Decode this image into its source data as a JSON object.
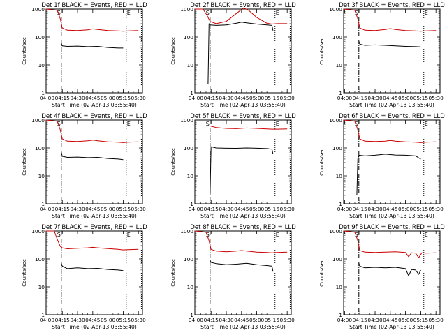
{
  "page": {
    "background": "#ffffff",
    "axis_color": "#000000",
    "events_color": "#000000",
    "lld_color": "#cc0000"
  },
  "chart_data": [
    {
      "type": "line",
      "title": "Det 1f BLACK = Events, RED = LLD",
      "xlabel": "Start Time (02-Apr-13 03:55:40)",
      "ylabel": "Counts/sec",
      "yscale": "log",
      "ylim": [
        1,
        1000
      ],
      "xlim": [
        "03:59",
        "05:34"
      ],
      "xticks": [
        "04:00",
        "04:15",
        "04:30",
        "04:45",
        "05:00",
        "05:15",
        "05:30"
      ],
      "yticks": [
        "1",
        "10",
        "100",
        "1000"
      ],
      "grid": false,
      "markers": [
        {
          "label": "S",
          "time": "04:14"
        },
        {
          "label": "E",
          "time": "05:18"
        }
      ],
      "dotted_lines": [
        "05:18",
        "05:33"
      ],
      "start_time": "04:14",
      "end_time": "05:15",
      "series": [
        {
          "color": "#000000",
          "x": [
            "04:14",
            "04:15",
            "04:20",
            "04:30",
            "04:40",
            "04:50",
            "05:00",
            "05:10",
            "05:15"
          ],
          "values": [
            60,
            48,
            46,
            47,
            45,
            46,
            42,
            40,
            40
          ]
        },
        {
          "color": "#cc0000",
          "x": [
            "03:59",
            "04:10",
            "04:13",
            "04:15",
            "04:20",
            "04:30",
            "04:40",
            "04:45",
            "04:50",
            "05:00",
            "05:10",
            "05:15",
            "05:20",
            "05:30"
          ],
          "values": [
            1000,
            900,
            450,
            210,
            175,
            170,
            180,
            195,
            185,
            170,
            165,
            160,
            165,
            170
          ]
        }
      ]
    },
    {
      "type": "line",
      "title": "Det 2f BLACK = Events, RED = LLD",
      "xlabel": "Start Time (02-Apr-13 03:55:40)",
      "ylabel": "Counts/sec",
      "yscale": "log",
      "ylim": [
        1,
        1000
      ],
      "xlim": [
        "03:59",
        "05:34"
      ],
      "xticks": [
        "04:00",
        "04:15",
        "04:30",
        "04:45",
        "05:00",
        "05:15",
        "05:30"
      ],
      "yticks": [
        "1",
        "10",
        "100",
        "1000"
      ],
      "grid": false,
      "markers": [
        {
          "label": "S",
          "time": "04:14"
        },
        {
          "label": "E",
          "time": "05:18"
        }
      ],
      "dotted_lines": [
        "05:18",
        "05:33"
      ],
      "start_time": "04:14",
      "end_time": "05:15",
      "series": [
        {
          "color": "#000000",
          "x": [
            "04:12",
            "04:13",
            "04:14",
            "04:20",
            "04:30",
            "04:40",
            "04:45",
            "04:50",
            "05:00",
            "05:10",
            "05:15",
            "05:16"
          ],
          "values": [
            2,
            300,
            270,
            260,
            270,
            310,
            340,
            320,
            290,
            270,
            260,
            170
          ]
        },
        {
          "color": "#cc0000",
          "x": [
            "03:59",
            "04:07",
            "04:11",
            "04:14",
            "04:20",
            "04:30",
            "04:40",
            "04:47",
            "04:52",
            "05:00",
            "05:10",
            "05:15",
            "05:20",
            "05:30"
          ],
          "values": [
            1000,
            1000,
            600,
            360,
            300,
            360,
            700,
            1100,
            900,
            500,
            310,
            290,
            300,
            300
          ]
        }
      ]
    },
    {
      "type": "line",
      "title": "Det 3f BLACK = Events, RED = LLD",
      "xlabel": "Start Time (02-Apr-13 03:55:40)",
      "ylabel": "Counts/sec",
      "yscale": "log",
      "ylim": [
        1,
        1000
      ],
      "xlim": [
        "03:59",
        "05:34"
      ],
      "xticks": [
        "04:00",
        "04:15",
        "04:30",
        "04:45",
        "05:00",
        "05:15",
        "05:30"
      ],
      "yticks": [
        "1",
        "10",
        "100",
        "1000"
      ],
      "grid": false,
      "markers": [
        {
          "label": "S",
          "time": "04:14"
        },
        {
          "label": "E",
          "time": "05:18"
        }
      ],
      "dotted_lines": [
        "05:18",
        "05:33"
      ],
      "start_time": "04:14",
      "end_time": "05:15",
      "series": [
        {
          "color": "#000000",
          "x": [
            "04:14",
            "04:15",
            "04:20",
            "04:30",
            "04:40",
            "04:50",
            "05:00",
            "05:10",
            "05:15"
          ],
          "values": [
            70,
            55,
            50,
            52,
            50,
            48,
            46,
            45,
            44
          ]
        },
        {
          "color": "#cc0000",
          "x": [
            "03:59",
            "04:10",
            "04:13",
            "04:15",
            "04:20",
            "04:30",
            "04:40",
            "04:45",
            "04:50",
            "05:00",
            "05:10",
            "05:15",
            "05:20",
            "05:30"
          ],
          "values": [
            1000,
            900,
            450,
            210,
            175,
            170,
            185,
            200,
            185,
            170,
            165,
            160,
            165,
            170
          ]
        }
      ]
    },
    {
      "type": "line",
      "title": "Det 4f BLACK = Events, RED = LLD",
      "xlabel": "Start Time (02-Apr-13 03:55:40)",
      "ylabel": "Counts/sec",
      "yscale": "log",
      "ylim": [
        1,
        1000
      ],
      "xlim": [
        "03:59",
        "05:34"
      ],
      "xticks": [
        "04:00",
        "04:15",
        "04:30",
        "04:45",
        "05:00",
        "05:15",
        "05:30"
      ],
      "yticks": [
        "1",
        "10",
        "100",
        "1000"
      ],
      "grid": false,
      "markers": [
        {
          "label": "S",
          "time": "04:14"
        },
        {
          "label": "E",
          "time": "05:18"
        }
      ],
      "dotted_lines": [
        "05:18",
        "05:33"
      ],
      "start_time": "04:14",
      "end_time": "05:15",
      "series": [
        {
          "color": "#000000",
          "x": [
            "04:14",
            "04:15",
            "04:20",
            "04:30",
            "04:40",
            "04:50",
            "05:00",
            "05:10",
            "05:15"
          ],
          "values": [
            70,
            50,
            46,
            47,
            45,
            46,
            42,
            40,
            38
          ]
        },
        {
          "color": "#cc0000",
          "x": [
            "03:59",
            "04:10",
            "04:13",
            "04:15",
            "04:20",
            "04:30",
            "04:40",
            "04:45",
            "04:50",
            "05:00",
            "05:10",
            "05:15",
            "05:20",
            "05:30"
          ],
          "values": [
            1000,
            900,
            450,
            210,
            175,
            170,
            180,
            190,
            180,
            165,
            160,
            155,
            160,
            165
          ]
        }
      ]
    },
    {
      "type": "line",
      "title": "Det 5f BLACK = Events, RED = LLD",
      "xlabel": "Start Time (02-Apr-13 03:55:40)",
      "ylabel": "Counts/sec",
      "yscale": "log",
      "ylim": [
        1,
        1000
      ],
      "xlim": [
        "03:59",
        "05:34"
      ],
      "xticks": [
        "04:00",
        "04:15",
        "04:30",
        "04:45",
        "05:00",
        "05:15",
        "05:30"
      ],
      "yticks": [
        "1",
        "10",
        "100",
        "1000"
      ],
      "grid": false,
      "markers": [
        {
          "label": "S",
          "time": "04:14"
        },
        {
          "label": "E",
          "time": "05:18"
        }
      ],
      "dotted_lines": [
        "05:18",
        "05:33"
      ],
      "start_time": "04:14",
      "end_time": "05:15",
      "series": [
        {
          "color": "#000000",
          "x": [
            "04:14",
            "04:15",
            "04:20",
            "04:30",
            "04:40",
            "04:50",
            "05:00",
            "05:10",
            "05:15",
            "05:16"
          ],
          "values": [
            2,
            110,
            100,
            98,
            97,
            100,
            98,
            95,
            90,
            60
          ]
        },
        {
          "color": "#cc0000",
          "x": [
            "04:14",
            "04:15",
            "04:20",
            "04:30",
            "04:40",
            "04:50",
            "05:00",
            "05:10",
            "05:15",
            "05:20",
            "05:30"
          ],
          "values": [
            620,
            600,
            540,
            500,
            490,
            520,
            500,
            480,
            470,
            470,
            480
          ]
        }
      ]
    },
    {
      "type": "line",
      "title": "Det 6f BLACK = Events, RED = LLD",
      "xlabel": "Start Time (02-Apr-13 03:55:40)",
      "ylabel": "Counts/sec",
      "yscale": "log",
      "ylim": [
        1,
        1000
      ],
      "xlim": [
        "03:59",
        "05:34"
      ],
      "xticks": [
        "04:00",
        "04:15",
        "04:30",
        "04:45",
        "05:00",
        "05:15",
        "05:30"
      ],
      "yticks": [
        "1",
        "10",
        "100",
        "1000"
      ],
      "grid": false,
      "markers": [
        {
          "label": "S",
          "time": "04:14"
        },
        {
          "label": "E",
          "time": "05:18"
        }
      ],
      "dotted_lines": [
        "05:18",
        "05:33"
      ],
      "start_time": "04:14",
      "end_time": "05:15",
      "series": [
        {
          "color": "#000000",
          "x": [
            "04:12",
            "04:13",
            "04:14",
            "04:20",
            "04:30",
            "04:40",
            "04:50",
            "05:00",
            "05:10",
            "05:15"
          ],
          "values": [
            2,
            40,
            55,
            52,
            55,
            60,
            56,
            55,
            52,
            40
          ]
        },
        {
          "color": "#cc0000",
          "x": [
            "03:59",
            "04:10",
            "04:13",
            "04:15",
            "04:20",
            "04:30",
            "04:40",
            "04:45",
            "04:50",
            "05:00",
            "05:10",
            "05:15",
            "05:20",
            "05:30"
          ],
          "values": [
            1000,
            900,
            450,
            210,
            175,
            170,
            175,
            185,
            175,
            165,
            160,
            155,
            160,
            165
          ]
        }
      ]
    },
    {
      "type": "line",
      "title": "Det 7f BLACK = Events, RED = LLD",
      "xlabel": "Start Time (02-Apr-13 03:55:40)",
      "ylabel": "Counts/sec",
      "yscale": "log",
      "ylim": [
        1,
        1000
      ],
      "xlim": [
        "03:59",
        "05:34"
      ],
      "xticks": [
        "04:00",
        "04:15",
        "04:30",
        "04:45",
        "05:00",
        "05:15",
        "05:30"
      ],
      "yticks": [
        "1",
        "10",
        "100",
        "1000"
      ],
      "grid": false,
      "markers": [
        {
          "label": "S",
          "time": "04:14"
        },
        {
          "label": "E",
          "time": "05:18"
        }
      ],
      "dotted_lines": [
        "05:18",
        "05:33"
      ],
      "start_time": "04:14",
      "end_time": "05:15",
      "series": [
        {
          "color": "#000000",
          "x": [
            "04:14",
            "04:15",
            "04:20",
            "04:30",
            "04:40",
            "04:50",
            "05:00",
            "05:10",
            "05:15"
          ],
          "values": [
            70,
            55,
            45,
            48,
            45,
            46,
            42,
            40,
            38
          ]
        },
        {
          "color": "#cc0000",
          "x": [
            "03:59",
            "04:07",
            "04:10",
            "04:13",
            "04:15",
            "04:20",
            "04:30",
            "04:40",
            "04:45",
            "04:50",
            "05:00",
            "05:10",
            "05:15",
            "05:20",
            "05:30"
          ],
          "values": [
            1000,
            1000,
            500,
            280,
            250,
            230,
            240,
            250,
            260,
            250,
            235,
            220,
            210,
            215,
            220
          ]
        }
      ]
    },
    {
      "type": "line",
      "title": "Det 8f BLACK = Events, RED = LLD",
      "xlabel": "Start Time (02-Apr-13 03:55:40)",
      "ylabel": "Counts/sec",
      "yscale": "log",
      "ylim": [
        1,
        1000
      ],
      "xlim": [
        "03:59",
        "05:34"
      ],
      "xticks": [
        "04:00",
        "04:15",
        "04:30",
        "04:45",
        "05:00",
        "05:15",
        "05:30"
      ],
      "yticks": [
        "1",
        "10",
        "100",
        "1000"
      ],
      "grid": false,
      "markers": [
        {
          "label": "S",
          "time": "04:14"
        },
        {
          "label": "E",
          "time": "05:18"
        }
      ],
      "dotted_lines": [
        "05:18",
        "05:33"
      ],
      "start_time": "04:14",
      "end_time": "05:15",
      "series": [
        {
          "color": "#000000",
          "x": [
            "04:14",
            "04:15",
            "04:20",
            "04:30",
            "04:40",
            "04:50",
            "05:00",
            "05:10",
            "05:15",
            "05:16"
          ],
          "values": [
            90,
            75,
            68,
            62,
            65,
            70,
            62,
            58,
            55,
            35
          ]
        },
        {
          "color": "#cc0000",
          "x": [
            "03:59",
            "04:10",
            "04:13",
            "04:15",
            "04:20",
            "04:30",
            "04:40",
            "04:45",
            "04:50",
            "05:00",
            "05:10",
            "05:15",
            "05:20",
            "05:30"
          ],
          "values": [
            1000,
            900,
            450,
            220,
            190,
            180,
            190,
            200,
            190,
            175,
            170,
            165,
            170,
            175
          ]
        }
      ]
    },
    {
      "type": "line",
      "title": "Det 9f BLACK = Events, RED = LLD",
      "xlabel": "Start Time (02-Apr-13 03:55:40)",
      "ylabel": "Counts/sec",
      "yscale": "log",
      "ylim": [
        1,
        1000
      ],
      "xlim": [
        "03:59",
        "05:34"
      ],
      "xticks": [
        "04:00",
        "04:15",
        "04:30",
        "04:45",
        "05:00",
        "05:15",
        "05:30"
      ],
      "yticks": [
        "1",
        "10",
        "100",
        "1000"
      ],
      "grid": false,
      "markers": [
        {
          "label": "S",
          "time": "04:14"
        },
        {
          "label": "E",
          "time": "05:18"
        }
      ],
      "dotted_lines": [
        "05:18",
        "05:33"
      ],
      "start_time": "04:14",
      "end_time": "05:15",
      "series": [
        {
          "color": "#000000",
          "x": [
            "04:14",
            "04:15",
            "04:20",
            "04:30",
            "04:40",
            "04:50",
            "05:00",
            "05:03",
            "05:06",
            "05:10",
            "05:13",
            "05:15"
          ],
          "values": [
            70,
            55,
            48,
            50,
            48,
            50,
            45,
            25,
            42,
            40,
            28,
            40
          ]
        },
        {
          "color": "#cc0000",
          "x": [
            "03:59",
            "04:10",
            "04:13",
            "04:15",
            "04:20",
            "04:30",
            "04:40",
            "04:50",
            "05:00",
            "05:03",
            "05:06",
            "05:10",
            "05:13",
            "05:16",
            "05:20",
            "05:30"
          ],
          "values": [
            1000,
            900,
            450,
            200,
            175,
            170,
            175,
            180,
            170,
            120,
            165,
            160,
            110,
            165,
            160,
            165
          ]
        }
      ]
    }
  ]
}
